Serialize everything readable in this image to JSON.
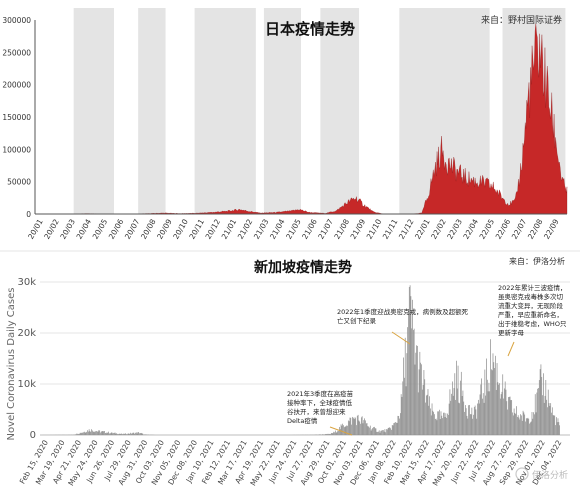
{
  "chart_data": [
    {
      "type": "area",
      "title": "日本疫情走势",
      "source": "来自：野村国际证券",
      "ylim": [
        0,
        300000
      ],
      "yticks": [
        0,
        50000,
        100000,
        150000,
        200000,
        250000,
        300000
      ],
      "xticks": [
        "20/01",
        "20/02",
        "20/03",
        "20/04",
        "20/05",
        "20/06",
        "20/07",
        "20/08",
        "20/09",
        "20/10",
        "20/11",
        "20/12",
        "21/01",
        "21/02",
        "21/03",
        "21/04",
        "21/05",
        "21/06",
        "21/07",
        "21/08",
        "21/09",
        "21/10",
        "21/11",
        "21/12",
        "22/01",
        "22/02",
        "22/03",
        "22/04",
        "22/05",
        "22/06",
        "22/07",
        "22/08",
        "22/09"
      ],
      "shaded_bands": [
        [
          2.4,
          4.9
        ],
        [
          6.4,
          8.1
        ],
        [
          9.9,
          13.7
        ],
        [
          14.2,
          16.5
        ],
        [
          17.7,
          20.1
        ],
        [
          22.6,
          28.2
        ],
        [
          29.0,
          32.9
        ]
      ],
      "grid": false,
      "colors": {
        "area": "#c62828",
        "band": "#e4e4e4"
      },
      "series": [
        {
          "points": [
            [
              0,
              0
            ],
            [
              2,
              10
            ],
            [
              3.2,
              700
            ],
            [
              4,
              300
            ],
            [
              5,
              100
            ],
            [
              6.5,
              300
            ],
            [
              7.3,
              900
            ],
            [
              8,
              1500
            ],
            [
              9,
              700
            ],
            [
              10,
              1200
            ],
            [
              11,
              2500
            ],
            [
              12,
              4500
            ],
            [
              12.7,
              7000
            ],
            [
              13.3,
              4000
            ],
            [
              14,
              1500
            ],
            [
              15,
              2500
            ],
            [
              16,
              5000
            ],
            [
              16.4,
              7000
            ],
            [
              17,
              2500
            ],
            [
              18,
              1000
            ],
            [
              18.7,
              5000
            ],
            [
              19.4,
              18000
            ],
            [
              19.9,
              25000
            ],
            [
              20.4,
              14000
            ],
            [
              21,
              3000
            ],
            [
              21.6,
              200
            ],
            [
              22.5,
              150
            ],
            [
              23.5,
              300
            ],
            [
              24,
              1500
            ],
            [
              24.4,
              30000
            ],
            [
              24.8,
              70000
            ],
            [
              25.2,
              98000
            ],
            [
              25.6,
              80000
            ],
            [
              26.2,
              65000
            ],
            [
              26.8,
              55000
            ],
            [
              27.4,
              50000
            ],
            [
              28,
              47000
            ],
            [
              28.5,
              40000
            ],
            [
              29,
              25000
            ],
            [
              29.4,
              15000
            ],
            [
              29.8,
              20000
            ],
            [
              30.2,
              80000
            ],
            [
              30.6,
              180000
            ],
            [
              31,
              238000
            ],
            [
              31.3,
              258000
            ],
            [
              31.6,
              215000
            ],
            [
              32,
              160000
            ],
            [
              32.4,
              100000
            ],
            [
              32.7,
              50000
            ],
            [
              33,
              35000
            ]
          ]
        }
      ]
    },
    {
      "type": "bar",
      "title": "新加坡疫情走势",
      "source": "来自：伊洛分析",
      "ylabel": "Novel Coronavirus Daily Cases",
      "ylim": [
        0,
        30000
      ],
      "yticks": [
        0,
        10000,
        20000,
        30000
      ],
      "ytick_labels": [
        "0",
        "10k",
        "20k",
        "30k"
      ],
      "xticks": [
        "Feb 15, 2020",
        "Mar 19, 2020",
        "Apr 21, 2020",
        "May 24, 2020",
        "Jun 26, 2020",
        "Jul 29, 2020",
        "Aug 31, 2020",
        "Oct 03, 2020",
        "Nov 05, 2020",
        "Dec 08, 2020",
        "Jan 10, 2021",
        "Feb 12, 2021",
        "Mar 17, 2021",
        "Apr 19, 2021",
        "May 22, 2021",
        "Jun 24, 2021",
        "Jul 27, 2021",
        "Aug 29, 2021",
        "Oct 01, 2021",
        "Nov 03, 2021",
        "Dec 06, 2021",
        "Jan 08, 2022",
        "Feb 10, 2022",
        "Mar 15, 2022",
        "Apr 17, 2022",
        "May 20, 2022",
        "Jun 22, 2022",
        "Jul 25, 2022",
        "Aug 27, 2022",
        "Sep 29, 2022",
        "Nov 01, 2022",
        "Dec 04, 2022"
      ],
      "grid": true,
      "colors": {
        "bar": "#8f8f8f"
      },
      "series": [
        {
          "points": [
            [
              0,
              0
            ],
            [
              2,
              50
            ],
            [
              2.6,
              600
            ],
            [
              3,
              1100
            ],
            [
              3.5,
              800
            ],
            [
              4.2,
              500
            ],
            [
              5,
              200
            ],
            [
              6,
              500
            ],
            [
              6.3,
              100
            ],
            [
              7,
              0
            ],
            [
              15,
              0
            ],
            [
              16.5,
              50
            ],
            [
              17.5,
              200
            ],
            [
              17.8,
              600
            ],
            [
              18.5,
              2500
            ],
            [
              19,
              3500
            ],
            [
              19.5,
              3000
            ],
            [
              20,
              1500
            ],
            [
              20.5,
              800
            ],
            [
              21,
              1000
            ],
            [
              21.5,
              2500
            ],
            [
              21.8,
              6000
            ],
            [
              22,
              14000
            ],
            [
              22.2,
              20000
            ],
            [
              22.3,
              25500
            ],
            [
              22.5,
              22000
            ],
            [
              22.8,
              15000
            ],
            [
              23.2,
              10000
            ],
            [
              23.6,
              5000
            ],
            [
              24,
              4000
            ],
            [
              24.4,
              3500
            ],
            [
              24.8,
              8000
            ],
            [
              25.1,
              12000
            ],
            [
              25.4,
              10000
            ],
            [
              25.8,
              6000
            ],
            [
              26.2,
              4000
            ],
            [
              26.6,
              8000
            ],
            [
              27,
              12000
            ],
            [
              27.3,
              16500
            ],
            [
              27.7,
              12000
            ],
            [
              28.2,
              7000
            ],
            [
              28.6,
              5000
            ],
            [
              29,
              4000
            ],
            [
              29.5,
              3500
            ],
            [
              30,
              7000
            ],
            [
              30.3,
              11500
            ],
            [
              30.6,
              9000
            ],
            [
              31,
              4000
            ],
            [
              31.4,
              2000
            ]
          ]
        }
      ],
      "annotations": [
        {
          "text": "2022年1季度迎战奥密克戎，病例数及超额死亡又创下纪录"
        },
        {
          "text": "2022年累计三波疫情，虽奥密克戎毒株多次切流重大变异，无现阶段严重，早应重新命名，出于维稳考虑，WHO只更新字母"
        },
        {
          "text": "2021年3季度在高疫苗接种率下，全球疫情低谷扶开，来曾想迎来Delta疫情"
        }
      ]
    }
  ],
  "watermark": "伊洛分析"
}
